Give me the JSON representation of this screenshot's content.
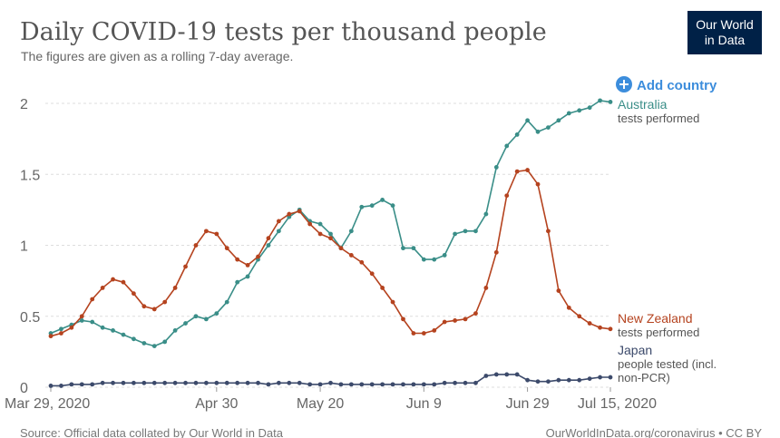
{
  "chart_data": {
    "type": "line",
    "title": "Daily COVID-19 tests per thousand people",
    "subtitle": "The figures are given as a rolling 7-day average.",
    "logo": [
      "Our World",
      "in Data"
    ],
    "button": "Add country",
    "source": "Source: Official data collated by Our World in Data",
    "credit": "OurWorldInData.org/coronavirus • CC BY",
    "x": [
      "2020-03-29",
      "2020-03-31",
      "2020-04-02",
      "2020-04-04",
      "2020-04-06",
      "2020-04-08",
      "2020-04-10",
      "2020-04-12",
      "2020-04-14",
      "2020-04-16",
      "2020-04-18",
      "2020-04-20",
      "2020-04-22",
      "2020-04-24",
      "2020-04-26",
      "2020-04-28",
      "2020-04-30",
      "2020-05-02",
      "2020-05-04",
      "2020-05-06",
      "2020-05-08",
      "2020-05-10",
      "2020-05-12",
      "2020-05-14",
      "2020-05-16",
      "2020-05-18",
      "2020-05-20",
      "2020-05-22",
      "2020-05-24",
      "2020-05-26",
      "2020-05-28",
      "2020-05-30",
      "2020-06-01",
      "2020-06-03",
      "2020-06-05",
      "2020-06-07",
      "2020-06-09",
      "2020-06-11",
      "2020-06-13",
      "2020-06-15",
      "2020-06-17",
      "2020-06-19",
      "2020-06-21",
      "2020-06-23",
      "2020-06-25",
      "2020-06-27",
      "2020-06-29",
      "2020-07-01",
      "2020-07-03",
      "2020-07-05",
      "2020-07-07",
      "2020-07-09",
      "2020-07-11",
      "2020-07-13",
      "2020-07-15"
    ],
    "series": [
      {
        "name": "Australia",
        "description": [
          "tests performed"
        ],
        "color": "#3a8e88",
        "values": [
          0.38,
          0.41,
          0.44,
          0.47,
          0.46,
          0.42,
          0.4,
          0.37,
          0.34,
          0.31,
          0.29,
          0.32,
          0.4,
          0.45,
          0.5,
          0.48,
          0.52,
          0.6,
          0.74,
          0.78,
          0.9,
          1.0,
          1.1,
          1.2,
          1.25,
          1.17,
          1.15,
          1.08,
          0.98,
          1.1,
          1.27,
          1.28,
          1.32,
          1.28,
          0.98,
          0.98,
          0.9,
          0.9,
          0.93,
          1.08,
          1.1,
          1.1,
          1.22,
          1.55,
          1.7,
          1.78,
          1.88,
          1.8,
          1.83,
          1.88,
          1.93,
          1.95,
          1.97,
          2.02,
          2.01
        ]
      },
      {
        "name": "New Zealand",
        "description": [
          "tests performed"
        ],
        "color": "#b5431f",
        "values": [
          0.36,
          0.38,
          0.42,
          0.5,
          0.62,
          0.7,
          0.76,
          0.74,
          0.66,
          0.57,
          0.55,
          0.6,
          0.7,
          0.85,
          1.0,
          1.1,
          1.08,
          0.98,
          0.9,
          0.86,
          0.92,
          1.05,
          1.17,
          1.22,
          1.24,
          1.15,
          1.08,
          1.05,
          0.98,
          0.93,
          0.88,
          0.8,
          0.7,
          0.6,
          0.48,
          0.38,
          0.38,
          0.4,
          0.46,
          0.47,
          0.48,
          0.52,
          0.7,
          0.95,
          1.35,
          1.52,
          1.53,
          1.43,
          1.1,
          0.68,
          0.56,
          0.5,
          0.45,
          0.42,
          0.41
        ]
      },
      {
        "name": "Japan",
        "description": [
          "people tested (incl.",
          "non-PCR)"
        ],
        "color": "#3c4a6b",
        "values": [
          0.01,
          0.01,
          0.02,
          0.02,
          0.02,
          0.03,
          0.03,
          0.03,
          0.03,
          0.03,
          0.03,
          0.03,
          0.03,
          0.03,
          0.03,
          0.03,
          0.03,
          0.03,
          0.03,
          0.03,
          0.03,
          0.02,
          0.03,
          0.03,
          0.03,
          0.02,
          0.02,
          0.03,
          0.02,
          0.02,
          0.02,
          0.02,
          0.02,
          0.02,
          0.02,
          0.02,
          0.02,
          0.02,
          0.03,
          0.03,
          0.03,
          0.03,
          0.08,
          0.09,
          0.09,
          0.09,
          0.05,
          0.04,
          0.04,
          0.05,
          0.05,
          0.05,
          0.06,
          0.07,
          0.07
        ]
      }
    ],
    "xlim": [
      "2020-03-29",
      "2020-07-15"
    ],
    "xticks": [
      {
        "value": "2020-03-29",
        "label": "Mar 29, 2020"
      },
      {
        "value": "2020-04-30",
        "label": "Apr 30"
      },
      {
        "value": "2020-05-20",
        "label": "May 20"
      },
      {
        "value": "2020-06-09",
        "label": "Jun 9"
      },
      {
        "value": "2020-06-29",
        "label": "Jun 29"
      },
      {
        "value": "2020-07-15",
        "label": "Jul 15, 2020"
      }
    ],
    "ylim": [
      0,
      2
    ],
    "yticks": [
      0,
      0.5,
      1,
      1.5,
      2
    ],
    "grid": true
  }
}
